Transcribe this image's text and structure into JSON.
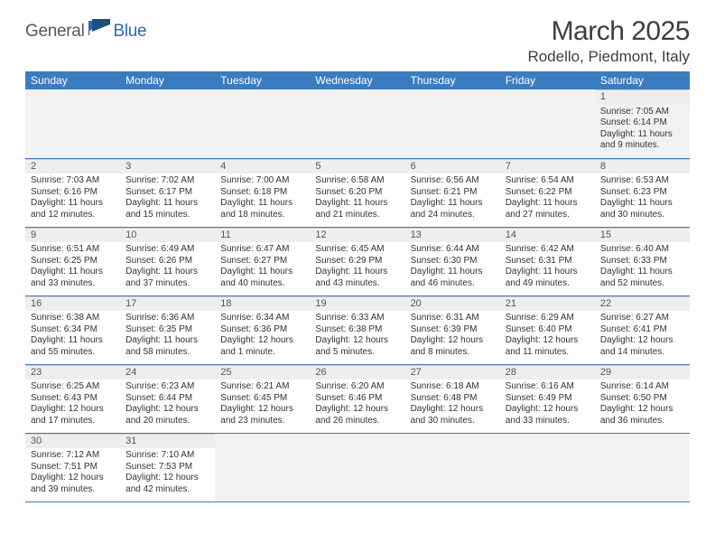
{
  "logo": {
    "part1": "General",
    "part2": "Blue"
  },
  "title": "March 2025",
  "subtitle": "Rodello, Piedmont, Italy",
  "colors": {
    "header_bg": "#3b7bbf",
    "header_text": "#ffffff",
    "daynum_bg": "#eeeeee",
    "row_border": "#3b7bbf",
    "text": "#333333",
    "logo_gray": "#555a60",
    "logo_blue": "#2f6aa8"
  },
  "weekdays": [
    "Sunday",
    "Monday",
    "Tuesday",
    "Wednesday",
    "Thursday",
    "Friday",
    "Saturday"
  ],
  "weeks": [
    [
      null,
      null,
      null,
      null,
      null,
      null,
      {
        "d": "1",
        "sr": "Sunrise: 7:05 AM",
        "ss": "Sunset: 6:14 PM",
        "dl1": "Daylight: 11 hours",
        "dl2": "and 9 minutes."
      }
    ],
    [
      {
        "d": "2",
        "sr": "Sunrise: 7:03 AM",
        "ss": "Sunset: 6:16 PM",
        "dl1": "Daylight: 11 hours",
        "dl2": "and 12 minutes."
      },
      {
        "d": "3",
        "sr": "Sunrise: 7:02 AM",
        "ss": "Sunset: 6:17 PM",
        "dl1": "Daylight: 11 hours",
        "dl2": "and 15 minutes."
      },
      {
        "d": "4",
        "sr": "Sunrise: 7:00 AM",
        "ss": "Sunset: 6:18 PM",
        "dl1": "Daylight: 11 hours",
        "dl2": "and 18 minutes."
      },
      {
        "d": "5",
        "sr": "Sunrise: 6:58 AM",
        "ss": "Sunset: 6:20 PM",
        "dl1": "Daylight: 11 hours",
        "dl2": "and 21 minutes."
      },
      {
        "d": "6",
        "sr": "Sunrise: 6:56 AM",
        "ss": "Sunset: 6:21 PM",
        "dl1": "Daylight: 11 hours",
        "dl2": "and 24 minutes."
      },
      {
        "d": "7",
        "sr": "Sunrise: 6:54 AM",
        "ss": "Sunset: 6:22 PM",
        "dl1": "Daylight: 11 hours",
        "dl2": "and 27 minutes."
      },
      {
        "d": "8",
        "sr": "Sunrise: 6:53 AM",
        "ss": "Sunset: 6:23 PM",
        "dl1": "Daylight: 11 hours",
        "dl2": "and 30 minutes."
      }
    ],
    [
      {
        "d": "9",
        "sr": "Sunrise: 6:51 AM",
        "ss": "Sunset: 6:25 PM",
        "dl1": "Daylight: 11 hours",
        "dl2": "and 33 minutes."
      },
      {
        "d": "10",
        "sr": "Sunrise: 6:49 AM",
        "ss": "Sunset: 6:26 PM",
        "dl1": "Daylight: 11 hours",
        "dl2": "and 37 minutes."
      },
      {
        "d": "11",
        "sr": "Sunrise: 6:47 AM",
        "ss": "Sunset: 6:27 PM",
        "dl1": "Daylight: 11 hours",
        "dl2": "and 40 minutes."
      },
      {
        "d": "12",
        "sr": "Sunrise: 6:45 AM",
        "ss": "Sunset: 6:29 PM",
        "dl1": "Daylight: 11 hours",
        "dl2": "and 43 minutes."
      },
      {
        "d": "13",
        "sr": "Sunrise: 6:44 AM",
        "ss": "Sunset: 6:30 PM",
        "dl1": "Daylight: 11 hours",
        "dl2": "and 46 minutes."
      },
      {
        "d": "14",
        "sr": "Sunrise: 6:42 AM",
        "ss": "Sunset: 6:31 PM",
        "dl1": "Daylight: 11 hours",
        "dl2": "and 49 minutes."
      },
      {
        "d": "15",
        "sr": "Sunrise: 6:40 AM",
        "ss": "Sunset: 6:33 PM",
        "dl1": "Daylight: 11 hours",
        "dl2": "and 52 minutes."
      }
    ],
    [
      {
        "d": "16",
        "sr": "Sunrise: 6:38 AM",
        "ss": "Sunset: 6:34 PM",
        "dl1": "Daylight: 11 hours",
        "dl2": "and 55 minutes."
      },
      {
        "d": "17",
        "sr": "Sunrise: 6:36 AM",
        "ss": "Sunset: 6:35 PM",
        "dl1": "Daylight: 11 hours",
        "dl2": "and 58 minutes."
      },
      {
        "d": "18",
        "sr": "Sunrise: 6:34 AM",
        "ss": "Sunset: 6:36 PM",
        "dl1": "Daylight: 12 hours",
        "dl2": "and 1 minute."
      },
      {
        "d": "19",
        "sr": "Sunrise: 6:33 AM",
        "ss": "Sunset: 6:38 PM",
        "dl1": "Daylight: 12 hours",
        "dl2": "and 5 minutes."
      },
      {
        "d": "20",
        "sr": "Sunrise: 6:31 AM",
        "ss": "Sunset: 6:39 PM",
        "dl1": "Daylight: 12 hours",
        "dl2": "and 8 minutes."
      },
      {
        "d": "21",
        "sr": "Sunrise: 6:29 AM",
        "ss": "Sunset: 6:40 PM",
        "dl1": "Daylight: 12 hours",
        "dl2": "and 11 minutes."
      },
      {
        "d": "22",
        "sr": "Sunrise: 6:27 AM",
        "ss": "Sunset: 6:41 PM",
        "dl1": "Daylight: 12 hours",
        "dl2": "and 14 minutes."
      }
    ],
    [
      {
        "d": "23",
        "sr": "Sunrise: 6:25 AM",
        "ss": "Sunset: 6:43 PM",
        "dl1": "Daylight: 12 hours",
        "dl2": "and 17 minutes."
      },
      {
        "d": "24",
        "sr": "Sunrise: 6:23 AM",
        "ss": "Sunset: 6:44 PM",
        "dl1": "Daylight: 12 hours",
        "dl2": "and 20 minutes."
      },
      {
        "d": "25",
        "sr": "Sunrise: 6:21 AM",
        "ss": "Sunset: 6:45 PM",
        "dl1": "Daylight: 12 hours",
        "dl2": "and 23 minutes."
      },
      {
        "d": "26",
        "sr": "Sunrise: 6:20 AM",
        "ss": "Sunset: 6:46 PM",
        "dl1": "Daylight: 12 hours",
        "dl2": "and 26 minutes."
      },
      {
        "d": "27",
        "sr": "Sunrise: 6:18 AM",
        "ss": "Sunset: 6:48 PM",
        "dl1": "Daylight: 12 hours",
        "dl2": "and 30 minutes."
      },
      {
        "d": "28",
        "sr": "Sunrise: 6:16 AM",
        "ss": "Sunset: 6:49 PM",
        "dl1": "Daylight: 12 hours",
        "dl2": "and 33 minutes."
      },
      {
        "d": "29",
        "sr": "Sunrise: 6:14 AM",
        "ss": "Sunset: 6:50 PM",
        "dl1": "Daylight: 12 hours",
        "dl2": "and 36 minutes."
      }
    ],
    [
      {
        "d": "30",
        "sr": "Sunrise: 7:12 AM",
        "ss": "Sunset: 7:51 PM",
        "dl1": "Daylight: 12 hours",
        "dl2": "and 39 minutes."
      },
      {
        "d": "31",
        "sr": "Sunrise: 7:10 AM",
        "ss": "Sunset: 7:53 PM",
        "dl1": "Daylight: 12 hours",
        "dl2": "and 42 minutes."
      },
      null,
      null,
      null,
      null,
      null
    ]
  ]
}
